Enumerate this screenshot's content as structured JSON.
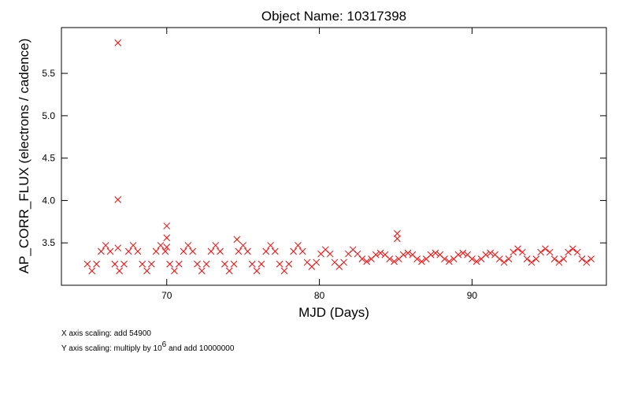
{
  "chart_data": {
    "type": "scatter",
    "title": "Object Name:  10317398",
    "xlabel": "MJD (Days)",
    "ylabel": "AP_CORR_FLUX (electrons / cadence)",
    "annotations": {
      "x_scaling": "X axis scaling: add 54900",
      "y_scaling": [
        "Y axis scaling: multiply by 10",
        "6",
        " and add 10000000"
      ]
    },
    "color": "#ff0000",
    "xlim": [
      63.1,
      98.8
    ],
    "xticks": [
      70,
      80,
      90
    ],
    "ylim": [
      3.0,
      6.04
    ],
    "yticks": [
      3.5,
      {
        "value": 4.0,
        "label": "4.0"
      },
      4.5,
      {
        "value": 5.0,
        "label": "5.0"
      },
      5.5
    ],
    "x": [
      64.8,
      65.1,
      65.4,
      65.7,
      66,
      66.3,
      66.6,
      66.9,
      67.2,
      67.5,
      67.8,
      68.1,
      68.4,
      68.7,
      69,
      69.3,
      69.6,
      69.9,
      70.2,
      70.5,
      70.8,
      71.1,
      71.4,
      71.7,
      72,
      72.3,
      72.6,
      72.9,
      73.2,
      73.5,
      73.8,
      74.1,
      74.4,
      74.7,
      75,
      75.3,
      75.6,
      75.9,
      76.2,
      76.5,
      76.8,
      77.1,
      77.4,
      77.7,
      78,
      78.3,
      78.6,
      78.9,
      79.2,
      79.5,
      79.8,
      80.1,
      80.4,
      80.7,
      81,
      81.3,
      81.6,
      81.9,
      82.2,
      82.5,
      82.8,
      83.1,
      83.4,
      83.7,
      84,
      84.3,
      84.6,
      84.9,
      85.2,
      85.5,
      85.8,
      86.1,
      86.4,
      86.7,
      87,
      87.3,
      87.6,
      87.9,
      88.2,
      88.5,
      88.8,
      89.1,
      89.4,
      89.7,
      90,
      90.3,
      90.6,
      90.9,
      91.2,
      91.5,
      91.8,
      92.1,
      92.4,
      92.7,
      93,
      93.3,
      93.6,
      93.9,
      94.2,
      94.5,
      94.8,
      95.1,
      95.4,
      95.7,
      96,
      96.3,
      96.6,
      96.9,
      97.2,
      97.5,
      97.8,
      66.8,
      66.8,
      66.8,
      70,
      70,
      70,
      74.6,
      85.1,
      85.1
    ],
    "values": [
      3.25,
      3.17,
      3.25,
      3.4,
      3.47,
      3.4,
      3.25,
      3.17,
      3.25,
      3.4,
      3.47,
      3.4,
      3.25,
      3.17,
      3.25,
      3.4,
      3.47,
      3.4,
      3.25,
      3.17,
      3.25,
      3.4,
      3.47,
      3.4,
      3.25,
      3.17,
      3.25,
      3.4,
      3.47,
      3.4,
      3.25,
      3.17,
      3.25,
      3.4,
      3.47,
      3.4,
      3.25,
      3.17,
      3.25,
      3.4,
      3.47,
      3.4,
      3.25,
      3.17,
      3.25,
      3.4,
      3.47,
      3.4,
      3.27,
      3.22,
      3.27,
      3.37,
      3.42,
      3.37,
      3.27,
      3.22,
      3.27,
      3.37,
      3.42,
      3.37,
      3.31,
      3.28,
      3.31,
      3.36,
      3.38,
      3.36,
      3.31,
      3.28,
      3.31,
      3.36,
      3.38,
      3.36,
      3.31,
      3.28,
      3.31,
      3.36,
      3.38,
      3.36,
      3.31,
      3.28,
      3.31,
      3.36,
      3.38,
      3.36,
      3.31,
      3.28,
      3.31,
      3.36,
      3.38,
      3.36,
      3.31,
      3.27,
      3.31,
      3.39,
      3.43,
      3.39,
      3.31,
      3.27,
      3.31,
      3.39,
      3.43,
      3.39,
      3.31,
      3.27,
      3.31,
      3.39,
      3.43,
      3.39,
      3.31,
      3.27,
      3.31,
      5.86,
      4.01,
      3.44,
      3.7,
      3.56,
      3.45,
      3.54,
      3.61,
      3.55
    ]
  }
}
